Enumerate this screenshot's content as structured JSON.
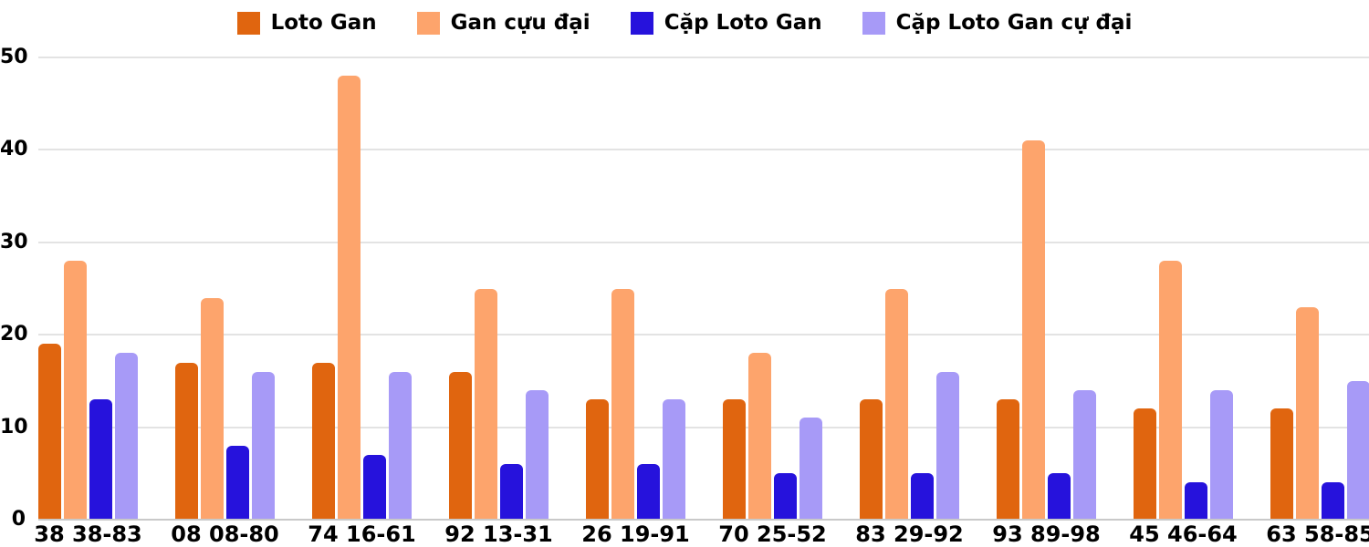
{
  "chart_data": {
    "type": "bar",
    "title": "",
    "xlabel": "",
    "ylabel": "",
    "categories": [
      "38 38-83",
      "08 08-80",
      "74 16-61",
      "92 13-31",
      "26 19-91",
      "70 25-52",
      "83 29-92",
      "93 89-98",
      "45 46-64",
      "63 58-85"
    ],
    "series": [
      {
        "name": "Loto Gan",
        "color": "#E0650F",
        "values": [
          19,
          17,
          17,
          16,
          13,
          13,
          13,
          13,
          12,
          12
        ]
      },
      {
        "name": "Gan cựu đại",
        "color": "#FDA46C",
        "values": [
          28,
          24,
          48,
          25,
          25,
          18,
          25,
          41,
          28,
          23
        ]
      },
      {
        "name": "Cặp Loto Gan",
        "color": "#2612DC",
        "values": [
          13,
          8,
          7,
          6,
          6,
          5,
          5,
          5,
          4,
          4
        ]
      },
      {
        "name": "Cặp Loto Gan cự đại",
        "color": "#A79AF7",
        "values": [
          18,
          16,
          16,
          14,
          13,
          11,
          16,
          14,
          14,
          15
        ]
      }
    ],
    "ylim": [
      0,
      50
    ],
    "yticks": [
      0,
      10,
      20,
      30,
      40,
      50
    ],
    "grid": true,
    "legend_position": "top",
    "style": {
      "grid_color": "#e3e3e3",
      "baseline_color": "#c9c9c9",
      "text_color": "#000000",
      "background": "#ffffff"
    }
  }
}
